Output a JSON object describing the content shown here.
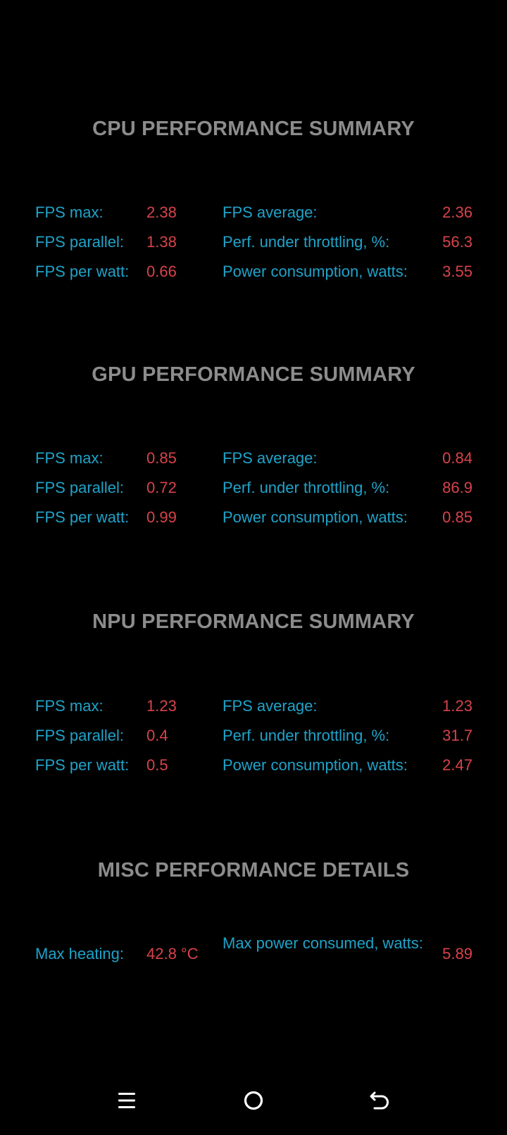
{
  "sections": [
    {
      "title": "CPU PERFORMANCE SUMMARY",
      "rows": [
        {
          "l1": "FPS max:",
          "v1": "2.38",
          "l2": "FPS average:",
          "v2": "2.36"
        },
        {
          "l1": "FPS parallel:",
          "v1": "1.38",
          "l2": "Perf. under throttling, %:",
          "v2": "56.3"
        },
        {
          "l1": "FPS per watt:",
          "v1": "0.66",
          "l2": "Power consumption, watts:",
          "v2": "3.55"
        }
      ]
    },
    {
      "title": "GPU PERFORMANCE SUMMARY",
      "rows": [
        {
          "l1": "FPS max:",
          "v1": "0.85",
          "l2": "FPS average:",
          "v2": "0.84"
        },
        {
          "l1": "FPS parallel:",
          "v1": "0.72",
          "l2": "Perf. under throttling, %:",
          "v2": "86.9"
        },
        {
          "l1": "FPS per watt:",
          "v1": "0.99",
          "l2": "Power consumption, watts:",
          "v2": "0.85"
        }
      ]
    },
    {
      "title": "NPU PERFORMANCE SUMMARY",
      "rows": [
        {
          "l1": "FPS max:",
          "v1": "1.23",
          "l2": "FPS average:",
          "v2": "1.23"
        },
        {
          "l1": "FPS parallel:",
          "v1": "0.4",
          "l2": "Perf. under throttling, %:",
          "v2": "31.7"
        },
        {
          "l1": "FPS per watt:",
          "v1": "0.5",
          "l2": "Power consumption, watts:",
          "v2": "2.47"
        }
      ]
    }
  ],
  "misc": {
    "title": "MISC PERFORMANCE DETAILS",
    "max_heating_label": "Max heating:",
    "max_heating_value": "42.8 °C",
    "max_power_label": "Max power consumed, watts:",
    "max_power_value": "5.89"
  },
  "navbar": {
    "icons": [
      "menu-icon",
      "home-circle-icon",
      "back-arrow-icon"
    ]
  },
  "colors": {
    "background": "#000000",
    "title": "#8c8c8c",
    "label": "#1fa3c9",
    "value": "#d8434a",
    "nav_icon": "#ffffff"
  }
}
